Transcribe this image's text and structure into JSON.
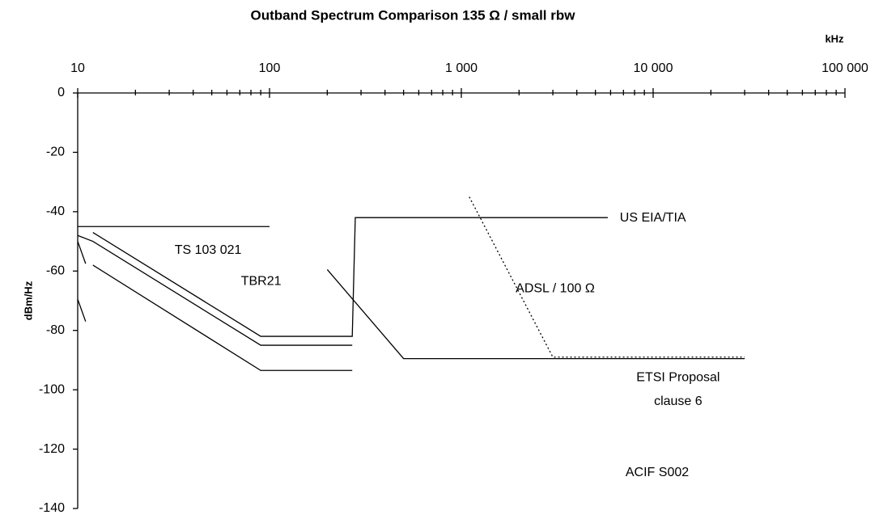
{
  "chart_data": {
    "type": "line",
    "title": "Outband Spectrum Comparison 135 Ω / small rbw",
    "x_label": "kHz",
    "y_label": "dBm/Hz",
    "x_log": true,
    "xlim": [
      10,
      100000
    ],
    "xticks": [
      10,
      100,
      {
        "value": 1000,
        "label": "1 000"
      },
      {
        "value": 10000,
        "label": "10 000"
      },
      {
        "value": 100000,
        "label": "100 000"
      }
    ],
    "xminorticks": [
      20,
      30,
      40,
      50,
      60,
      70,
      80,
      90,
      200,
      300,
      400,
      500,
      600,
      700,
      800,
      900,
      2000,
      3000,
      4000,
      5000,
      6000,
      7000,
      8000,
      9000,
      20000,
      30000,
      40000,
      50000,
      60000,
      70000,
      80000,
      90000
    ],
    "ylim": [
      0,
      -140
    ],
    "yticks": [
      0,
      -20,
      -40,
      -60,
      -80,
      -100,
      -120,
      -140
    ],
    "series": [
      {
        "color": "#000000",
        "x": [
          10,
          100
        ],
        "values": [
          -45,
          -45
        ]
      },
      {
        "color": "#000000",
        "x": [
          12,
          90,
          270,
          280,
          5800
        ],
        "values": [
          -47,
          -82,
          -82,
          -42,
          -42
        ]
      },
      {
        "color": "#000000",
        "x": [
          10,
          12,
          90,
          270
        ],
        "values": [
          -48,
          -50,
          -85,
          -85
        ]
      },
      {
        "color": "#000000",
        "x": [
          12,
          90,
          270
        ],
        "values": [
          -58,
          -93.5,
          -93.5
        ]
      },
      {
        "color": "#000000",
        "x": [
          10,
          11
        ],
        "values": [
          -50,
          -57.5
        ]
      },
      {
        "color": "#000000",
        "x": [
          10,
          11
        ],
        "values": [
          -69.5,
          -77
        ]
      },
      {
        "color": "#000000",
        "x": [
          200,
          500,
          30000
        ],
        "values": [
          -59.5,
          -89.5,
          -89.5
        ]
      },
      {
        "color": "#000000",
        "dashed": true,
        "x": [
          1100,
          3000,
          30000
        ],
        "values": [
          -35,
          -89,
          -89
        ]
      }
    ],
    "annotations": [
      {
        "text": "TS 103 021",
        "x": 32,
        "y": -53,
        "anchor": "start"
      },
      {
        "text": "TBR21",
        "x": 71,
        "y": -63.5,
        "anchor": "start"
      },
      {
        "text": "US EIA/TIA",
        "x": 6700,
        "y": -42.2,
        "anchor": "start"
      },
      {
        "text": "ADSL / 100 Ω",
        "x": 1920,
        "y": -66,
        "anchor": "start"
      },
      {
        "text": "ETSI Proposal",
        "x": 13500,
        "y": -96,
        "anchor": "middle"
      },
      {
        "text": "clause 6",
        "x": 13500,
        "y": -104,
        "anchor": "middle"
      },
      {
        "text": "ACIF S002",
        "x": 10500,
        "y": -128,
        "anchor": "middle"
      }
    ]
  }
}
